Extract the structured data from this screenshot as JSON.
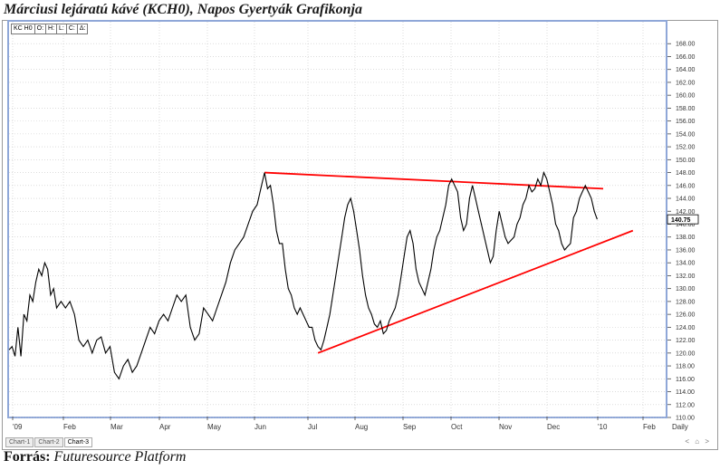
{
  "title": "Márciusi lejáratú kávé (KCH0), Napos Gyertyák Grafikonja",
  "legend": [
    "KC H0",
    "O:",
    "H:",
    "L:",
    "C:",
    "Δ:"
  ],
  "tabs": [
    "Chart-1",
    "Chart-2",
    "Chart-3"
  ],
  "active_tab": "Chart-3",
  "nav": "< ⌂ >",
  "source_label": "Forrás:",
  "source_text": "Futuresource Platform",
  "chart_data": {
    "type": "line",
    "ylim": [
      110,
      170
    ],
    "yticks": [
      "168.00",
      "166.00",
      "164.00",
      "162.00",
      "160.00",
      "158.00",
      "156.00",
      "154.00",
      "152.00",
      "150.00",
      "148.00",
      "146.00",
      "144.00",
      "142.00",
      "140.00",
      "138.00",
      "136.00",
      "134.00",
      "132.00",
      "130.00",
      "128.00",
      "126.00",
      "124.00",
      "122.00",
      "120.00",
      "118.00",
      "116.00",
      "114.00",
      "112.00",
      "110.00"
    ],
    "xticks": [
      "'09",
      "Feb",
      "Mar",
      "Apr",
      "May",
      "Jun",
      "Jul",
      "Aug",
      "Sep",
      "Oct",
      "Nov",
      "Dec",
      "'10",
      "Feb",
      "Daily"
    ],
    "last_price": "140.75",
    "series": [
      {
        "color": "#000000",
        "points": [
          [
            0,
            120.5
          ],
          [
            2,
            121
          ],
          [
            4,
            119.5
          ],
          [
            6,
            124
          ],
          [
            8,
            119.5
          ],
          [
            10,
            126
          ],
          [
            12,
            125
          ],
          [
            14,
            129
          ],
          [
            16,
            128
          ],
          [
            18,
            131
          ],
          [
            20,
            133
          ],
          [
            22,
            132
          ],
          [
            24,
            134
          ],
          [
            26,
            133
          ],
          [
            28,
            129
          ],
          [
            30,
            130
          ],
          [
            32,
            127
          ],
          [
            35,
            128
          ],
          [
            38,
            127
          ],
          [
            41,
            128
          ],
          [
            44,
            126
          ],
          [
            47,
            122
          ],
          [
            50,
            121
          ],
          [
            53,
            122
          ],
          [
            56,
            120
          ],
          [
            59,
            122
          ],
          [
            62,
            122.5
          ],
          [
            65,
            120
          ],
          [
            68,
            121
          ],
          [
            71,
            117
          ],
          [
            74,
            116
          ],
          [
            77,
            118
          ],
          [
            80,
            119
          ],
          [
            83,
            117
          ],
          [
            86,
            118
          ],
          [
            89,
            120
          ],
          [
            92,
            122
          ],
          [
            95,
            124
          ],
          [
            98,
            123
          ],
          [
            101,
            125
          ],
          [
            104,
            126
          ],
          [
            107,
            125
          ],
          [
            110,
            127
          ],
          [
            113,
            129
          ],
          [
            116,
            128
          ],
          [
            119,
            129
          ],
          [
            122,
            124
          ],
          [
            125,
            122
          ],
          [
            128,
            123
          ],
          [
            131,
            127
          ],
          [
            134,
            126
          ],
          [
            137,
            125
          ],
          [
            140,
            127
          ],
          [
            143,
            129
          ],
          [
            146,
            131
          ],
          [
            149,
            134
          ],
          [
            152,
            136
          ],
          [
            155,
            137
          ],
          [
            158,
            138
          ],
          [
            161,
            140
          ],
          [
            164,
            142
          ],
          [
            167,
            143
          ],
          [
            170,
            146
          ],
          [
            172,
            148
          ],
          [
            174,
            145.5
          ],
          [
            176,
            146
          ],
          [
            178,
            143
          ],
          [
            180,
            139
          ],
          [
            182,
            137
          ],
          [
            184,
            137
          ],
          [
            186,
            133
          ],
          [
            188,
            130
          ],
          [
            190,
            129
          ],
          [
            192,
            127
          ],
          [
            194,
            126
          ],
          [
            196,
            127
          ],
          [
            198,
            126
          ],
          [
            200,
            125
          ],
          [
            202,
            124
          ],
          [
            204,
            124
          ],
          [
            206,
            122
          ],
          [
            208,
            121
          ],
          [
            210,
            120.5
          ],
          [
            212,
            122
          ],
          [
            214,
            124
          ],
          [
            216,
            126
          ],
          [
            218,
            129
          ],
          [
            220,
            132
          ],
          [
            222,
            135
          ],
          [
            224,
            138
          ],
          [
            226,
            141
          ],
          [
            228,
            143
          ],
          [
            230,
            144
          ],
          [
            232,
            142
          ],
          [
            234,
            139
          ],
          [
            236,
            136
          ],
          [
            238,
            132
          ],
          [
            240,
            129
          ],
          [
            242,
            127
          ],
          [
            244,
            126
          ],
          [
            246,
            124.5
          ],
          [
            248,
            124
          ],
          [
            250,
            125
          ],
          [
            252,
            123
          ],
          [
            254,
            123.5
          ],
          [
            256,
            125
          ],
          [
            258,
            126
          ],
          [
            260,
            127
          ],
          [
            262,
            129
          ],
          [
            264,
            132
          ],
          [
            266,
            135
          ],
          [
            268,
            138
          ],
          [
            270,
            139
          ],
          [
            272,
            137
          ],
          [
            274,
            133
          ],
          [
            276,
            131
          ],
          [
            278,
            130
          ],
          [
            280,
            129
          ],
          [
            282,
            131
          ],
          [
            284,
            133
          ],
          [
            286,
            136
          ],
          [
            288,
            138
          ],
          [
            290,
            139
          ],
          [
            292,
            141
          ],
          [
            294,
            143
          ],
          [
            296,
            146
          ],
          [
            298,
            147
          ],
          [
            300,
            146
          ],
          [
            302,
            145
          ],
          [
            304,
            141
          ],
          [
            306,
            139
          ],
          [
            308,
            140
          ],
          [
            310,
            144
          ],
          [
            312,
            146
          ],
          [
            314,
            144
          ],
          [
            316,
            142
          ],
          [
            318,
            140
          ],
          [
            320,
            138
          ],
          [
            322,
            136
          ],
          [
            324,
            134
          ],
          [
            326,
            135
          ],
          [
            328,
            139
          ],
          [
            330,
            142
          ],
          [
            332,
            140
          ],
          [
            334,
            138
          ],
          [
            336,
            137
          ],
          [
            338,
            137.5
          ],
          [
            340,
            138
          ],
          [
            342,
            140
          ],
          [
            344,
            141
          ],
          [
            346,
            143
          ],
          [
            348,
            144
          ],
          [
            350,
            146
          ],
          [
            352,
            145
          ],
          [
            354,
            145.5
          ],
          [
            356,
            147
          ],
          [
            358,
            146
          ],
          [
            360,
            148
          ],
          [
            362,
            147
          ],
          [
            364,
            145
          ],
          [
            366,
            143
          ],
          [
            368,
            140
          ],
          [
            370,
            139
          ],
          [
            372,
            137
          ],
          [
            374,
            136
          ],
          [
            376,
            136.5
          ],
          [
            378,
            137
          ],
          [
            380,
            141
          ],
          [
            382,
            142
          ],
          [
            384,
            144
          ],
          [
            386,
            145
          ],
          [
            388,
            146
          ],
          [
            390,
            145
          ],
          [
            392,
            144
          ],
          [
            394,
            142
          ],
          [
            396,
            140.75
          ]
        ]
      }
    ],
    "trendlines": [
      {
        "color": "#ff0000",
        "points": [
          [
            172,
            148
          ],
          [
            400,
            145.5
          ]
        ]
      },
      {
        "color": "#ff0000",
        "points": [
          [
            208,
            120
          ],
          [
            420,
            139
          ]
        ]
      }
    ]
  }
}
